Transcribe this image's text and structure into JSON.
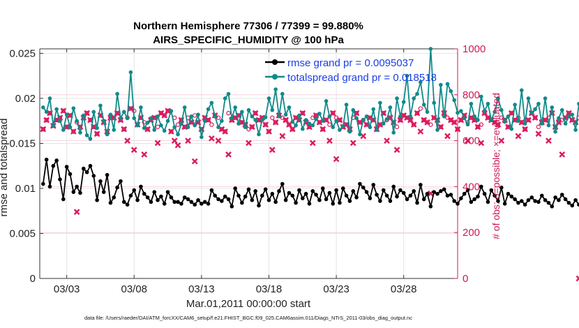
{
  "chart_data": {
    "type": "line",
    "title": "Northern Hemisphere 77306 / 77399 = 99.880%",
    "subtitle": "AIRS_SPECIFIC_HUMIDITY @ 100 hPa",
    "xlabel": "Mar.01,2011 00:00:00 start",
    "ylabel": "rmse and totalspread",
    "y2label": "# of obs: o=possible; ×=evaluated",
    "footnote": "data file: /Users/raeder/DAI/ATM_forcXX/CAM6_setup/f.e21.FHIST_BGC.f09_025.CAM6assim.011/Diags_NTrS_2011-03/obs_diag_output.nc",
    "x_tick_labels": [
      "03/03",
      "03/08",
      "03/13",
      "03/18",
      "03/23",
      "03/28"
    ],
    "x_ticks_day": [
      3,
      8,
      13,
      18,
      23,
      28
    ],
    "xlim_day": [
      1,
      32
    ],
    "ylim": [
      0,
      0.0255
    ],
    "y_ticks": [
      0,
      0.005,
      0.01,
      0.015,
      0.02,
      0.025
    ],
    "y_tick_labels": [
      "0",
      "0.005",
      "0.01",
      "0.015",
      "0.02",
      "0.025"
    ],
    "y2lim": [
      0,
      1000
    ],
    "y2_ticks": [
      0,
      200,
      400,
      600,
      800,
      1000
    ],
    "y2_tick_labels": [
      "0",
      "200",
      "400",
      "600",
      "800",
      "1000"
    ],
    "x_start_day": 1.25,
    "x_step_day": 0.25,
    "series": [
      {
        "name": "rmse grand pr = 0.0095037",
        "color": "#000000",
        "axis": "left",
        "values": [
          0.0105,
          0.0132,
          0.0102,
          0.0125,
          0.0131,
          0.011,
          0.0088,
          0.0124,
          0.0116,
          0.0096,
          0.0102,
          0.0095,
          0.0122,
          0.0118,
          0.0125,
          0.0114,
          0.0087,
          0.0108,
          0.0096,
          0.0115,
          0.0084,
          0.009,
          0.0101,
          0.0108,
          0.0085,
          0.0082,
          0.0092,
          0.0098,
          0.0087,
          0.0102,
          0.0094,
          0.009,
          0.0085,
          0.0096,
          0.0087,
          0.0091,
          0.0083,
          0.0096,
          0.009,
          0.0085,
          0.0085,
          0.0083,
          0.009,
          0.0088,
          0.0085,
          0.0082,
          0.0087,
          0.0083,
          0.0085,
          0.0083,
          0.0098,
          0.0092,
          0.0088,
          0.0086,
          0.0091,
          0.0088,
          0.008,
          0.01,
          0.0092,
          0.0084,
          0.0091,
          0.0099,
          0.0087,
          0.0097,
          0.0081,
          0.0092,
          0.0099,
          0.0087,
          0.0094,
          0.0085,
          0.0097,
          0.0105,
          0.0087,
          0.0095,
          0.0092,
          0.0084,
          0.0098,
          0.0089,
          0.0094,
          0.0083,
          0.0097,
          0.0093,
          0.0087,
          0.01,
          0.0088,
          0.0095,
          0.0083,
          0.0098,
          0.0084,
          0.01,
          0.0092,
          0.0086,
          0.0097,
          0.009,
          0.0105,
          0.0101,
          0.0096,
          0.0089,
          0.0104,
          0.0093,
          0.0086,
          0.0098,
          0.0092,
          0.0086,
          0.0102,
          0.0091,
          0.0098,
          0.0095,
          0.0088,
          0.0092,
          0.0097,
          0.0084,
          0.0104,
          0.0088,
          0.0094,
          0.008,
          0.0096,
          0.0094,
          0.0097,
          0.0099,
          0.0092,
          0.0093,
          0.0086,
          0.0083,
          0.0089,
          0.0094,
          0.0098,
          0.0085,
          0.0088,
          0.0091,
          0.0102,
          0.0094,
          0.0085,
          0.0098,
          0.0092,
          0.0086,
          0.0101,
          0.0083,
          0.0094,
          0.0091,
          0.0088,
          0.0084,
          0.0086,
          0.0082,
          0.0087,
          0.009,
          0.0086,
          0.0085,
          0.0092,
          0.0087,
          0.0084,
          0.008,
          0.009,
          0.0087,
          0.0093,
          0.0088,
          0.0084,
          0.0081,
          0.0087,
          0.0082,
          0.0086,
          0.0084,
          0.0088,
          0.0081
        ]
      },
      {
        "name": "totalspread grand pr = 0.018518",
        "color": "#0f8a8a",
        "axis": "left",
        "values": [
          0.019,
          0.0185,
          0.02,
          0.017,
          0.0188,
          0.0175,
          0.0165,
          0.0182,
          0.0168,
          0.0189,
          0.0175,
          0.0162,
          0.0181,
          0.0159,
          0.0155,
          0.0185,
          0.0167,
          0.0192,
          0.0175,
          0.016,
          0.0182,
          0.0165,
          0.0205,
          0.0178,
          0.0185,
          0.0178,
          0.0229,
          0.0178,
          0.017,
          0.019,
          0.0167,
          0.0173,
          0.0178,
          0.0165,
          0.018,
          0.017,
          0.0164,
          0.0175,
          0.0186,
          0.0168,
          0.016,
          0.0172,
          0.019,
          0.0168,
          0.018,
          0.017,
          0.0182,
          0.0157,
          0.0175,
          0.0188,
          0.0195,
          0.018,
          0.0168,
          0.0175,
          0.02,
          0.0205,
          0.0178,
          0.019,
          0.0172,
          0.0185,
          0.0168,
          0.0187,
          0.018,
          0.0176,
          0.016,
          0.0176,
          0.0179,
          0.02,
          0.0187,
          0.021,
          0.018,
          0.0205,
          0.0182,
          0.019,
          0.0174,
          0.017,
          0.0181,
          0.0166,
          0.0176,
          0.0172,
          0.017,
          0.0177,
          0.0183,
          0.0175,
          0.0197,
          0.018,
          0.0168,
          0.0175,
          0.0165,
          0.0169,
          0.0193,
          0.0163,
          0.0187,
          0.0178,
          0.016,
          0.0176,
          0.018,
          0.0168,
          0.0188,
          0.0165,
          0.0195,
          0.0172,
          0.0177,
          0.019,
          0.0162,
          0.02,
          0.018,
          0.0196,
          0.0225,
          0.018,
          0.02,
          0.0205,
          0.0218,
          0.0193,
          0.0185,
          0.0255,
          0.0195,
          0.0165,
          0.0215,
          0.018,
          0.0216,
          0.0208,
          0.0198,
          0.0184,
          0.0186,
          0.0178,
          0.0171,
          0.0194,
          0.018,
          0.0176,
          0.0202,
          0.0186,
          0.0194,
          0.0176,
          0.0185,
          0.02,
          0.0187,
          0.0174,
          0.018,
          0.0166,
          0.0193,
          0.0175,
          0.0209,
          0.0172,
          0.02,
          0.0184,
          0.0188,
          0.0194,
          0.0172,
          0.02,
          0.017,
          0.019,
          0.0163,
          0.0178,
          0.0187,
          0.0172,
          0.018,
          0.0182,
          0.0165,
          0.0194,
          0.0198,
          0.0182,
          0.0207,
          0.0212
        ]
      },
      {
        "name": "obs possible",
        "color": "#dd1a5c",
        "axis": "right",
        "marker": "o",
        "values": [
          650,
          690,
          720,
          665,
          690,
          700,
          730,
          660,
          710,
          640,
          680,
          660,
          700,
          720,
          690,
          660,
          630,
          710,
          680,
          640,
          700,
          700,
          720,
          690,
          650,
          700,
          740,
          730,
          670,
          700,
          680,
          650,
          690,
          700,
          660,
          720,
          710,
          730,
          640,
          700,
          670,
          690,
          660,
          700,
          680,
          710,
          680,
          650,
          700,
          690,
          670,
          710,
          700,
          650,
          640,
          720,
          690,
          700,
          710,
          680,
          670,
          650,
          660,
          720,
          690,
          700,
          670,
          640,
          700,
          680,
          710,
          700,
          690,
          670,
          650,
          700,
          690,
          720,
          680,
          660,
          700,
          710,
          680,
          650,
          690,
          670,
          720,
          700,
          690,
          660,
          670,
          650,
          700,
          720,
          680,
          690,
          670,
          700,
          690,
          650,
          670,
          720,
          690,
          700,
          680,
          660,
          690,
          710,
          700,
          690,
          670,
          720,
          740,
          690,
          680,
          670,
          700,
          690,
          660,
          720,
          700,
          690,
          680,
          650,
          690,
          710,
          680,
          700,
          690,
          660,
          670,
          720,
          700,
          690,
          680,
          670,
          700,
          690,
          660,
          720,
          690,
          700,
          680,
          650,
          690,
          720,
          700,
          660,
          680,
          690,
          700,
          720,
          660,
          680,
          690,
          700,
          720,
          690,
          680,
          700
        ]
      },
      {
        "name": "obs evaluated",
        "color": "#dd1a5c",
        "axis": "right",
        "marker": "x",
        "values": [
          650,
          690,
          720,
          665,
          690,
          700,
          730,
          660,
          710,
          640,
          290,
          660,
          700,
          720,
          690,
          660,
          630,
          710,
          680,
          640,
          700,
          700,
          720,
          690,
          650,
          600,
          740,
          560,
          670,
          700,
          540,
          650,
          690,
          700,
          590,
          720,
          710,
          730,
          640,
          600,
          580,
          690,
          660,
          600,
          680,
          510,
          680,
          650,
          700,
          690,
          610,
          710,
          600,
          650,
          640,
          540,
          690,
          700,
          710,
          680,
          670,
          590,
          660,
          720,
          690,
          700,
          670,
          640,
          560,
          680,
          710,
          620,
          690,
          670,
          650,
          700,
          690,
          720,
          680,
          660,
          590,
          710,
          680,
          650,
          690,
          600,
          720,
          520,
          690,
          660,
          670,
          650,
          590,
          720,
          680,
          620,
          670,
          700,
          690,
          650,
          670,
          720,
          600,
          700,
          680,
          560,
          690,
          710,
          700,
          690,
          670,
          720,
          640,
          690,
          680,
          370,
          700,
          690,
          660,
          720,
          620,
          690,
          680,
          650,
          690,
          710,
          600,
          700,
          690,
          660,
          590,
          720,
          700,
          690,
          680,
          670,
          600,
          690,
          660,
          720,
          690,
          620,
          680,
          650,
          690,
          720,
          700,
          630,
          680,
          690,
          600,
          720,
          660,
          680,
          540,
          700,
          720,
          690,
          680,
          0
        ]
      }
    ],
    "legend_location": "top-right"
  }
}
